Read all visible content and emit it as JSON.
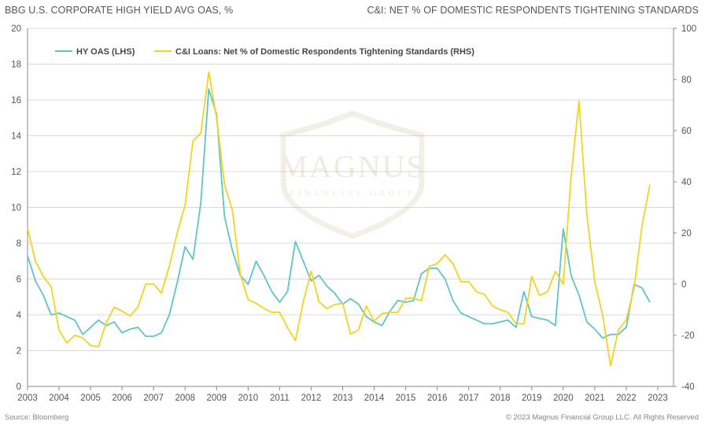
{
  "header": {
    "left_title": "BBG U.S. CORPORATE HIGH YIELD AVG OAS, %",
    "right_title": "C&I: NET % OF DOMESTIC RESPONDENTS TIGHTENING STANDARDS"
  },
  "footer": {
    "source": "Source: Bloomberg",
    "copyright": "© 2023 Magnus Financial Group LLC. All Rights Reserved"
  },
  "colors": {
    "hy": "#5ec4c8",
    "ci": "#f5d21f",
    "grid": "#d9d9d9",
    "axis": "#888888"
  },
  "chart_data": {
    "type": "line",
    "title": "",
    "xlabel": "",
    "legend": [
      "HY OAS (LHS)",
      "C&I Loans: Net % of Domestic Respondents Tightening Standards (RHS)"
    ],
    "legend_position": "top-left",
    "x_ticks": [
      "2003",
      "2004",
      "2005",
      "2006",
      "2007",
      "2008",
      "2009",
      "2010",
      "2011",
      "2012",
      "2013",
      "2014",
      "2015",
      "2016",
      "2017",
      "2018",
      "2019",
      "2020",
      "2021",
      "2022",
      "2023"
    ],
    "xlim": [
      2003,
      2023.5
    ],
    "left_axis": {
      "ylim": [
        0,
        20
      ],
      "ticks": [
        "0",
        "2",
        "4",
        "6",
        "8",
        "10",
        "12",
        "14",
        "16",
        "18",
        "20"
      ]
    },
    "right_axis": {
      "ylim": [
        -40,
        100
      ],
      "ticks": [
        "-40",
        "-20",
        "0",
        "20",
        "40",
        "60",
        "80",
        "100"
      ]
    },
    "series": [
      {
        "name": "HY OAS (LHS)",
        "axis": "left",
        "x": [
          2003.0,
          2003.25,
          2003.5,
          2003.75,
          2004.0,
          2004.25,
          2004.5,
          2004.75,
          2005.0,
          2005.25,
          2005.5,
          2005.75,
          2006.0,
          2006.25,
          2006.5,
          2006.75,
          2007.0,
          2007.25,
          2007.5,
          2007.75,
          2008.0,
          2008.25,
          2008.5,
          2008.75,
          2009.0,
          2009.25,
          2009.5,
          2009.75,
          2010.0,
          2010.25,
          2010.5,
          2010.75,
          2011.0,
          2011.25,
          2011.5,
          2011.75,
          2012.0,
          2012.25,
          2012.5,
          2012.75,
          2013.0,
          2013.25,
          2013.5,
          2013.75,
          2014.0,
          2014.25,
          2014.5,
          2014.75,
          2015.0,
          2015.25,
          2015.5,
          2015.75,
          2016.0,
          2016.25,
          2016.5,
          2016.75,
          2017.0,
          2017.25,
          2017.5,
          2017.75,
          2018.0,
          2018.25,
          2018.5,
          2018.75,
          2019.0,
          2019.25,
          2019.5,
          2019.75,
          2020.0,
          2020.25,
          2020.5,
          2020.75,
          2021.0,
          2021.25,
          2021.5,
          2021.75,
          2022.0,
          2022.25,
          2022.5,
          2022.75
        ],
        "values": [
          7.3,
          5.9,
          5.1,
          4.0,
          4.1,
          3.9,
          3.7,
          2.9,
          3.3,
          3.7,
          3.4,
          3.6,
          3.0,
          3.2,
          3.3,
          2.8,
          2.8,
          3.0,
          4.0,
          5.8,
          7.8,
          7.1,
          10.3,
          16.6,
          15.2,
          9.5,
          7.6,
          6.2,
          5.7,
          7.0,
          6.2,
          5.3,
          4.7,
          5.3,
          8.1,
          7.0,
          5.9,
          6.2,
          5.6,
          5.2,
          4.6,
          4.9,
          4.6,
          3.9,
          3.6,
          3.4,
          4.2,
          4.8,
          4.7,
          4.8,
          6.3,
          6.6,
          6.6,
          6.0,
          4.8,
          4.1,
          3.9,
          3.7,
          3.5,
          3.5,
          3.6,
          3.7,
          3.3,
          5.3,
          3.9,
          3.8,
          3.7,
          3.4,
          8.8,
          6.2,
          5.1,
          3.6,
          3.2,
          2.7,
          2.9,
          2.9,
          3.3,
          5.7,
          5.5,
          4.7
        ]
      },
      {
        "name": "C&I Loans: Net % of Domestic Respondents Tightening Standards (RHS)",
        "axis": "right",
        "x": [
          2003.0,
          2003.25,
          2003.5,
          2003.75,
          2004.0,
          2004.25,
          2004.5,
          2004.75,
          2005.0,
          2005.25,
          2005.5,
          2005.75,
          2006.0,
          2006.25,
          2006.5,
          2006.75,
          2007.0,
          2007.25,
          2007.5,
          2007.75,
          2008.0,
          2008.25,
          2008.5,
          2008.75,
          2009.0,
          2009.25,
          2009.5,
          2009.75,
          2010.0,
          2010.25,
          2010.5,
          2010.75,
          2011.0,
          2011.25,
          2011.5,
          2011.75,
          2012.0,
          2012.25,
          2012.5,
          2012.75,
          2013.0,
          2013.25,
          2013.5,
          2013.75,
          2014.0,
          2014.25,
          2014.5,
          2014.75,
          2015.0,
          2015.25,
          2015.5,
          2015.75,
          2016.0,
          2016.25,
          2016.5,
          2016.75,
          2017.0,
          2017.25,
          2017.5,
          2017.75,
          2018.0,
          2018.25,
          2018.5,
          2018.75,
          2019.0,
          2019.25,
          2019.5,
          2019.75,
          2020.0,
          2020.25,
          2020.5,
          2020.75,
          2021.0,
          2021.25,
          2021.5,
          2021.75,
          2022.0,
          2022.25,
          2022.5,
          2022.75
        ],
        "values": [
          22,
          9,
          3,
          -1,
          -18,
          -23,
          -20,
          -21,
          -24,
          -24.5,
          -15,
          -9,
          -10.5,
          -12.5,
          -9,
          0,
          0,
          -3.5,
          7,
          20,
          31,
          56,
          59,
          83,
          65,
          39,
          29,
          4,
          -6,
          -7.5,
          -9.5,
          -11,
          -11,
          -17,
          -22,
          -7,
          5,
          -7,
          -9.5,
          -8,
          -7.5,
          -19.5,
          -18,
          -8.5,
          -14.5,
          -11.5,
          -11,
          -11,
          -5.5,
          -5.5,
          -6.5,
          7,
          8,
          11.5,
          8,
          1,
          1,
          -3,
          -4,
          -8.5,
          -10,
          -11,
          -15.5,
          -15.5,
          3,
          -4.5,
          -3,
          5,
          0,
          42,
          71.5,
          27,
          1,
          -12,
          -32,
          -18,
          -14,
          -1.5,
          23,
          39
        ]
      }
    ]
  }
}
